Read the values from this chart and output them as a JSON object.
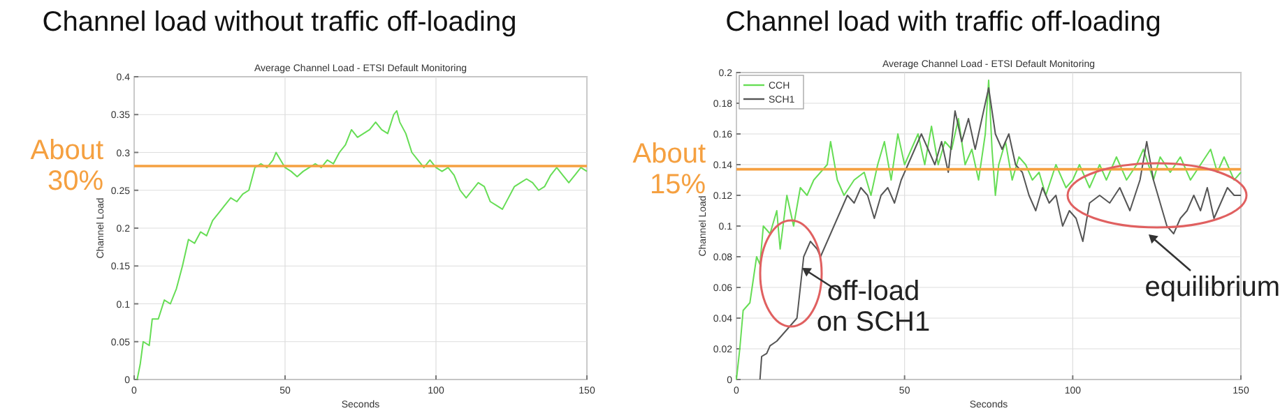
{
  "chart_data": [
    {
      "type": "line",
      "title": "Channel load without traffic off-loading",
      "subtitle": "Average Channel Load - ETSI Default Monitoring",
      "xlabel": "Seconds",
      "ylabel": "Channel Load",
      "xlim": [
        0,
        150
      ],
      "xticks": [
        0,
        50,
        100,
        150
      ],
      "ylim": [
        0,
        0.4
      ],
      "yticks": [
        0,
        0.05,
        0.1,
        0.15,
        0.2,
        0.25,
        0.3,
        0.35,
        0.4
      ],
      "grid": true,
      "legend": false,
      "series": [
        {
          "color": "#66dd55",
          "x": [
            1,
            2,
            3,
            5,
            6,
            8,
            10,
            12,
            14,
            16,
            18,
            20,
            22,
            24,
            26,
            28,
            30,
            32,
            34,
            36,
            38,
            40,
            42,
            44,
            46,
            47,
            50,
            52,
            54,
            56,
            58,
            60,
            62,
            64,
            66,
            68,
            70,
            72,
            74,
            76,
            78,
            80,
            82,
            84,
            86,
            87,
            88,
            90,
            92,
            94,
            96,
            98,
            100,
            102,
            104,
            106,
            108,
            110,
            112,
            114,
            116,
            118,
            120,
            122,
            124,
            126,
            128,
            130,
            132,
            134,
            136,
            138,
            140,
            142,
            144,
            146,
            148,
            150
          ],
          "values": [
            0,
            0.02,
            0.05,
            0.045,
            0.08,
            0.08,
            0.105,
            0.1,
            0.12,
            0.15,
            0.185,
            0.18,
            0.195,
            0.19,
            0.21,
            0.22,
            0.23,
            0.24,
            0.235,
            0.245,
            0.25,
            0.28,
            0.285,
            0.28,
            0.29,
            0.3,
            0.28,
            0.275,
            0.268,
            0.275,
            0.28,
            0.285,
            0.28,
            0.29,
            0.285,
            0.3,
            0.31,
            0.33,
            0.32,
            0.325,
            0.33,
            0.34,
            0.33,
            0.325,
            0.35,
            0.355,
            0.34,
            0.325,
            0.3,
            0.29,
            0.28,
            0.29,
            0.28,
            0.275,
            0.28,
            0.27,
            0.25,
            0.24,
            0.25,
            0.26,
            0.255,
            0.235,
            0.23,
            0.225,
            0.24,
            0.255,
            0.26,
            0.265,
            0.26,
            0.25,
            0.255,
            0.27,
            0.28,
            0.27,
            0.26,
            0.27,
            0.28,
            0.275
          ]
        }
      ],
      "ref_lines": [
        {
          "axis": "y",
          "value": 0.282,
          "label": "About 30%",
          "color": "#f5a040"
        }
      ]
    },
    {
      "type": "line",
      "title": "Channel load with traffic off-loading",
      "subtitle": "Average Channel Load - ETSI Default Monitoring",
      "xlabel": "Seconds",
      "ylabel": "Channel Load",
      "xlim": [
        0,
        150
      ],
      "xticks": [
        0,
        50,
        100,
        150
      ],
      "ylim": [
        0,
        0.2
      ],
      "yticks": [
        0,
        0.02,
        0.04,
        0.06,
        0.08,
        0.1,
        0.12,
        0.14,
        0.16,
        0.18,
        0.2
      ],
      "grid": true,
      "legend": "top left",
      "series": [
        {
          "name": "CCH",
          "color": "#66dd55",
          "x": [
            0,
            1,
            2,
            4,
            5,
            6,
            7,
            8,
            10,
            12,
            13,
            15,
            17,
            19,
            21,
            23,
            25,
            27,
            28,
            30,
            32,
            35,
            38,
            40,
            42,
            44,
            46,
            48,
            50,
            52,
            54,
            56,
            58,
            60,
            62,
            64,
            66,
            68,
            70,
            72,
            74,
            75,
            76,
            77,
            78,
            80,
            82,
            84,
            86,
            88,
            90,
            92,
            95,
            98,
            100,
            102,
            105,
            108,
            110,
            113,
            116,
            119,
            121,
            124,
            126,
            129,
            132,
            135,
            138,
            141,
            143,
            145,
            148,
            150
          ],
          "values": [
            0,
            0.02,
            0.045,
            0.05,
            0.065,
            0.08,
            0.075,
            0.1,
            0.095,
            0.11,
            0.085,
            0.12,
            0.1,
            0.125,
            0.12,
            0.13,
            0.135,
            0.14,
            0.155,
            0.13,
            0.12,
            0.13,
            0.135,
            0.12,
            0.14,
            0.155,
            0.13,
            0.16,
            0.14,
            0.15,
            0.16,
            0.14,
            0.165,
            0.14,
            0.155,
            0.15,
            0.17,
            0.14,
            0.15,
            0.13,
            0.16,
            0.195,
            0.15,
            0.12,
            0.14,
            0.155,
            0.13,
            0.145,
            0.14,
            0.13,
            0.135,
            0.12,
            0.14,
            0.125,
            0.13,
            0.14,
            0.125,
            0.14,
            0.13,
            0.145,
            0.13,
            0.14,
            0.15,
            0.13,
            0.145,
            0.135,
            0.145,
            0.13,
            0.14,
            0.15,
            0.135,
            0.145,
            0.13,
            0.135
          ]
        },
        {
          "name": "SCH1",
          "color": "#555555",
          "x": [
            7,
            7.5,
            9,
            10,
            12,
            14,
            16,
            18,
            19,
            20,
            21,
            22,
            24,
            25,
            27,
            29,
            31,
            33,
            35,
            37,
            39,
            41,
            43,
            45,
            47,
            49,
            51,
            53,
            55,
            57,
            59,
            61,
            63,
            65,
            67,
            69,
            71,
            73,
            75,
            77,
            79,
            81,
            83,
            85,
            87,
            89,
            91,
            93,
            95,
            97,
            99,
            101,
            103,
            105,
            108,
            111,
            114,
            117,
            120,
            122,
            124,
            126,
            128,
            130,
            132,
            134,
            136,
            138,
            140,
            142,
            144,
            146,
            148,
            150
          ],
          "values": [
            0,
            0.015,
            0.017,
            0.022,
            0.025,
            0.03,
            0.035,
            0.04,
            0.06,
            0.08,
            0.085,
            0.09,
            0.085,
            0.08,
            0.09,
            0.1,
            0.11,
            0.12,
            0.115,
            0.125,
            0.12,
            0.105,
            0.12,
            0.125,
            0.115,
            0.13,
            0.14,
            0.15,
            0.16,
            0.15,
            0.14,
            0.155,
            0.135,
            0.175,
            0.155,
            0.17,
            0.15,
            0.17,
            0.19,
            0.16,
            0.15,
            0.16,
            0.14,
            0.135,
            0.12,
            0.11,
            0.125,
            0.115,
            0.12,
            0.1,
            0.11,
            0.105,
            0.09,
            0.115,
            0.12,
            0.115,
            0.125,
            0.11,
            0.13,
            0.155,
            0.13,
            0.115,
            0.1,
            0.095,
            0.105,
            0.11,
            0.12,
            0.11,
            0.125,
            0.105,
            0.115,
            0.125,
            0.12,
            0.12
          ]
        }
      ],
      "ref_lines": [
        {
          "axis": "y",
          "value": 0.137,
          "label": "About 15%",
          "color": "#f5a040"
        }
      ],
      "annotations": [
        "off-load on SCH1",
        "equilibrium"
      ]
    }
  ]
}
